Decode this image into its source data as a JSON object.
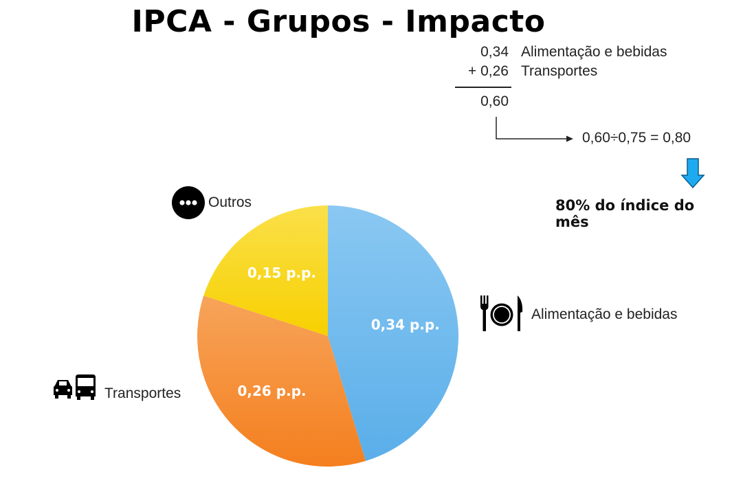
{
  "title": "IPCA - Grupos - Impacto",
  "calculation": {
    "line1_value": "0,34",
    "line1_label": "Alimentação e bebidas",
    "line2_value": "+ 0,26",
    "line2_label": "Transportes",
    "sum": "0,60",
    "division": "0,60÷0,75 = 0,80",
    "highlight": "80% do índice do mês"
  },
  "chart_data": {
    "type": "pie",
    "title": "IPCA - Grupos - Impacto",
    "slices": [
      {
        "name": "Alimentação e bebidas",
        "value": 0.34,
        "label": "0,34 p.p.",
        "color": "#5aaee9",
        "color_light": "#8ac8f2",
        "icon": "fork-plate-knife-icon"
      },
      {
        "name": "Transportes",
        "value": 0.26,
        "label": "0,26 p.p.",
        "color": "#f47f1e",
        "color_light": "#f7a45a",
        "icon": "car-bus-icon"
      },
      {
        "name": "Outros",
        "value": 0.15,
        "label": "0,15 p.p.",
        "color": "#f7d000",
        "color_light": "#fae04a",
        "icon": "more-dots-icon"
      }
    ]
  },
  "colors": {
    "arrow_down": "#1eaaf0",
    "text": "#222222"
  }
}
